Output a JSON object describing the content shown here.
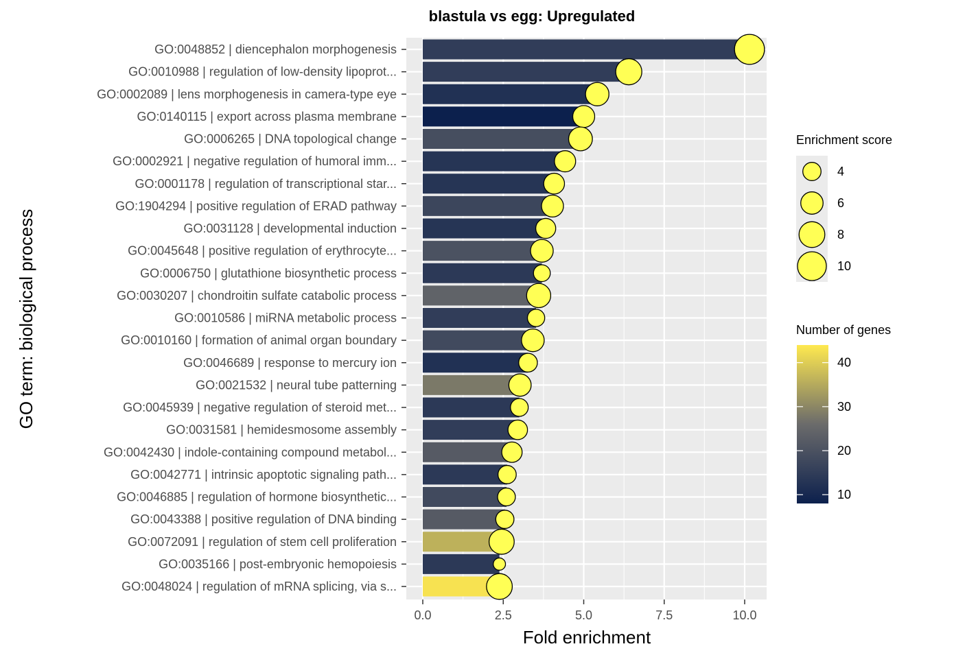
{
  "chart_data": {
    "type": "bar",
    "title": "blastula vs egg: Upregulated",
    "xlabel": "Fold enrichment",
    "ylabel": "GO term: biological process",
    "xlim": [
      0,
      10.5
    ],
    "xticks": [
      0,
      2.5,
      5,
      7.5,
      10
    ],
    "xtick_labels": [
      "0.0",
      "2.5",
      "5.0",
      "7.5",
      "10.0"
    ],
    "grid": true,
    "bar_fill_by": "Number of genes",
    "point_size_by": "Enrichment score",
    "categories": [
      "GO:0048852 | diencephalon morphogenesis",
      "GO:0010988 | regulation of low-density lipoprot...",
      "GO:0002089 | lens morphogenesis in camera-type eye",
      "GO:0140115 | export across plasma membrane",
      "GO:0006265 | DNA topological change",
      "GO:0002921 | negative regulation of humoral imm...",
      "GO:0001178 | regulation of transcriptional star...",
      "GO:1904294 | positive regulation of ERAD pathway",
      "GO:0031128 | developmental induction",
      "GO:0045648 | positive regulation of erythrocyte...",
      "GO:0006750 | glutathione biosynthetic process",
      "GO:0030207 | chondroitin sulfate catabolic process",
      "GO:0010586 | miRNA metabolic process",
      "GO:0010160 | formation of animal organ boundary",
      "GO:0046689 | response to mercury ion",
      "GO:0021532 | neural tube patterning",
      "GO:0045939 | negative regulation of steroid met...",
      "GO:0031581 | hemidesmosome assembly",
      "GO:0042430 | indole-containing compound metabol...",
      "GO:0042771 | intrinsic apoptotic signaling path...",
      "GO:0046885 | regulation of hormone biosynthetic...",
      "GO:0043388 | positive regulation of DNA binding",
      "GO:0072091 | regulation of stem cell proliferation",
      "GO:0035166 | post-embryonic hemopoiesis",
      "GO:0048024 | regulation of mRNA splicing, via s..."
    ],
    "fold_enrichment": [
      10.15,
      6.4,
      5.42,
      5.0,
      4.9,
      4.42,
      4.08,
      4.03,
      3.82,
      3.7,
      3.7,
      3.6,
      3.52,
      3.42,
      3.27,
      3.02,
      3.0,
      2.95,
      2.77,
      2.62,
      2.6,
      2.55,
      2.45,
      2.38,
      2.38
    ],
    "number_of_genes": [
      15,
      15,
      12,
      8,
      19,
      13,
      13,
      17,
      13,
      20,
      14,
      24,
      15,
      18,
      12,
      28,
      14,
      15,
      22,
      14,
      18,
      22,
      36,
      14,
      43
    ],
    "enrichment_score": [
      10.8,
      8.2,
      6.6,
      5.8,
      6.8,
      5.4,
      5.2,
      5.8,
      4.8,
      6.2,
      3.4,
      7.0,
      3.6,
      6.2,
      4.2,
      6.0,
      3.8,
      4.6,
      5.0,
      4.0,
      3.8,
      4.0,
      7.6,
      1.8,
      8.0
    ],
    "legend_size": {
      "title": "Enrichment score",
      "values": [
        4,
        6,
        8,
        10
      ],
      "labels": [
        "4",
        "6",
        "8",
        "10"
      ]
    },
    "legend_color": {
      "title": "Number of genes",
      "range": [
        8,
        44
      ],
      "ticks": [
        10,
        20,
        30,
        40
      ],
      "tick_labels": [
        "10",
        "20",
        "30",
        "40"
      ]
    },
    "colors": {
      "panel_bg": "#ebebeb",
      "grid": "#ffffff",
      "point_fill": "#ffff55",
      "point_stroke": "#000000",
      "gradient_low": "#0c204d",
      "gradient_mid": "#6b6b6b",
      "gradient_high": "#ffe94f"
    }
  }
}
